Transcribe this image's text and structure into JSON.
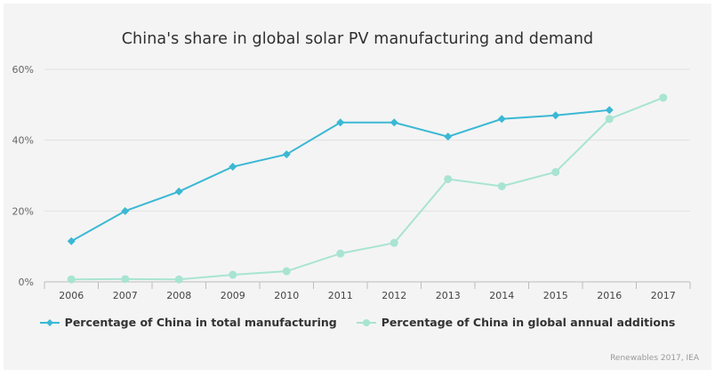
{
  "chart_data": {
    "type": "line",
    "title": "China's share in global solar PV manufacturing and demand",
    "xlabel": "",
    "ylabel": "",
    "categories": [
      "2006",
      "2007",
      "2008",
      "2009",
      "2010",
      "2011",
      "2012",
      "2013",
      "2014",
      "2015",
      "2016",
      "2017"
    ],
    "ylim": [
      0,
      60
    ],
    "yticks": [
      0,
      20,
      40,
      60
    ],
    "ytick_labels": [
      "0%",
      "20%",
      "40%",
      "60%"
    ],
    "grid": true,
    "legend_position": "bottom",
    "series": [
      {
        "name": "Percentage of China in total manufacturing",
        "color": "#3bb8d4",
        "marker": "diamond",
        "values": [
          11.5,
          20,
          25.5,
          32.5,
          36,
          45,
          45,
          41,
          46,
          47,
          48.5,
          null
        ]
      },
      {
        "name": "Percentage of China in global annual additions",
        "color": "#a8e4d2",
        "marker": "circle",
        "values": [
          0.7,
          0.8,
          0.7,
          2,
          3,
          8,
          11,
          29,
          27,
          31,
          46,
          52
        ]
      }
    ],
    "source": "Renewables 2017, IEA"
  }
}
